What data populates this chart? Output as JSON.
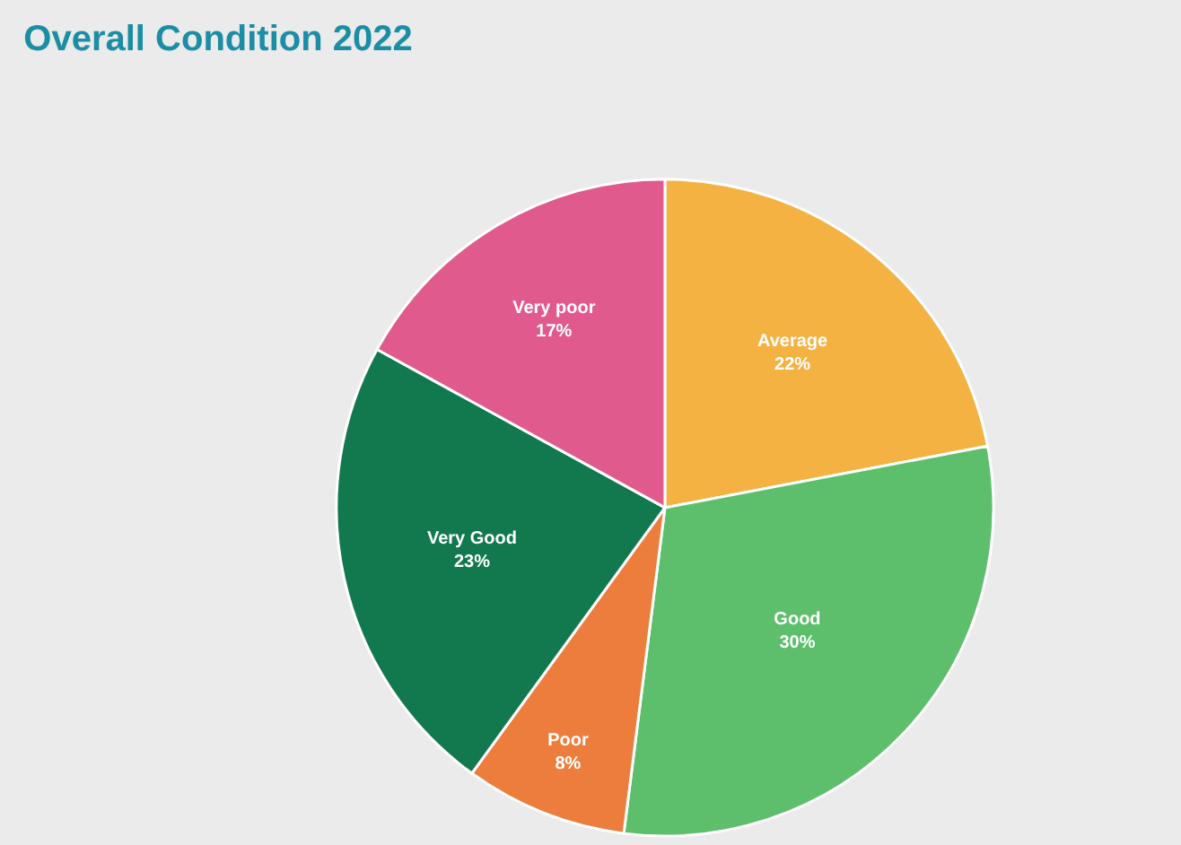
{
  "chart_data": {
    "type": "pie",
    "title": "Overall Condition 2022",
    "categories": [
      "Average",
      "Good",
      "Poor",
      "Very Good",
      "Very poor"
    ],
    "values": [
      22,
      30,
      8,
      23,
      17
    ],
    "value_labels": [
      "22%",
      "30%",
      "8%",
      "23%",
      "17%"
    ],
    "colors": [
      "#f4b243",
      "#5dbf6b",
      "#ec7d3c",
      "#12794f",
      "#e05a8e"
    ],
    "legend": false
  }
}
